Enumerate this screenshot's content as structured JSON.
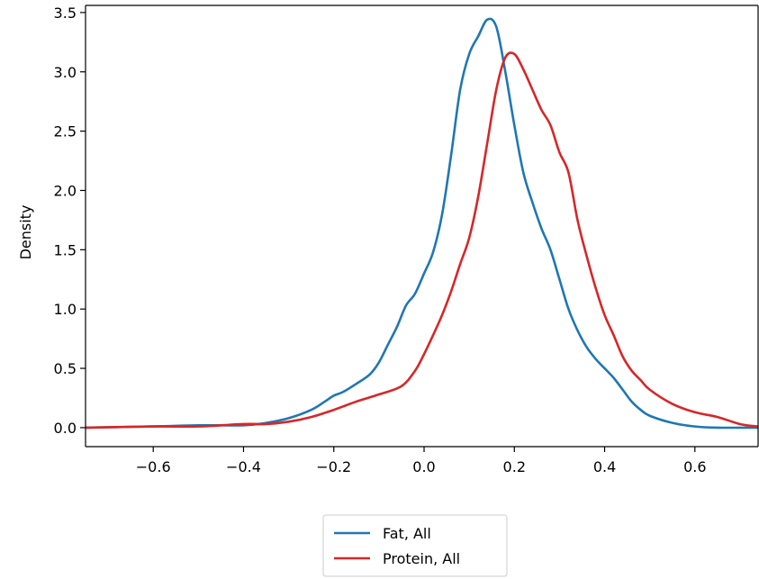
{
  "chart_data": {
    "type": "line",
    "title": "",
    "xlabel": "",
    "ylabel": "Density",
    "xlim": [
      -0.75,
      0.74
    ],
    "ylim": [
      -0.16,
      3.56
    ],
    "xticks": [
      -0.6,
      -0.4,
      -0.2,
      0.0,
      0.2,
      0.4,
      0.6
    ],
    "xtick_labels": [
      "−0.6",
      "−0.4",
      "−0.2",
      "0.0",
      "0.2",
      "0.4",
      "0.6"
    ],
    "yticks": [
      0.0,
      0.5,
      1.0,
      1.5,
      2.0,
      2.5,
      3.0,
      3.5
    ],
    "ytick_labels": [
      "0.0",
      "0.5",
      "1.0",
      "1.5",
      "2.0",
      "2.5",
      "3.0",
      "3.5"
    ],
    "grid": false,
    "legend_position": "bottom-center",
    "series": [
      {
        "name": "Fat, All",
        "color": "#1f77b4",
        "x": [
          -0.75,
          -0.6,
          -0.5,
          -0.4,
          -0.35,
          -0.3,
          -0.25,
          -0.22,
          -0.2,
          -0.18,
          -0.15,
          -0.12,
          -0.1,
          -0.08,
          -0.06,
          -0.04,
          -0.02,
          0.0,
          0.02,
          0.04,
          0.06,
          0.08,
          0.1,
          0.12,
          0.14,
          0.16,
          0.18,
          0.2,
          0.22,
          0.24,
          0.26,
          0.28,
          0.3,
          0.32,
          0.34,
          0.36,
          0.38,
          0.4,
          0.42,
          0.44,
          0.46,
          0.48,
          0.5,
          0.55,
          0.6,
          0.65,
          0.74
        ],
        "y": [
          0.0,
          0.01,
          0.02,
          0.02,
          0.04,
          0.08,
          0.15,
          0.22,
          0.27,
          0.3,
          0.37,
          0.45,
          0.55,
          0.7,
          0.85,
          1.03,
          1.13,
          1.3,
          1.48,
          1.8,
          2.3,
          2.85,
          3.15,
          3.3,
          3.44,
          3.38,
          3.0,
          2.55,
          2.15,
          1.9,
          1.68,
          1.5,
          1.25,
          1.0,
          0.82,
          0.68,
          0.58,
          0.5,
          0.42,
          0.32,
          0.22,
          0.15,
          0.1,
          0.04,
          0.01,
          0.0,
          0.0
        ]
      },
      {
        "name": "Protein, All",
        "color": "#d62728",
        "x": [
          -0.75,
          -0.6,
          -0.5,
          -0.4,
          -0.35,
          -0.3,
          -0.25,
          -0.2,
          -0.15,
          -0.1,
          -0.05,
          -0.02,
          0.0,
          0.02,
          0.04,
          0.06,
          0.08,
          0.1,
          0.12,
          0.14,
          0.16,
          0.18,
          0.2,
          0.22,
          0.24,
          0.26,
          0.28,
          0.3,
          0.32,
          0.34,
          0.36,
          0.38,
          0.4,
          0.42,
          0.44,
          0.46,
          0.48,
          0.5,
          0.55,
          0.6,
          0.65,
          0.7,
          0.74
        ],
        "y": [
          0.0,
          0.01,
          0.01,
          0.03,
          0.03,
          0.05,
          0.09,
          0.15,
          0.22,
          0.28,
          0.35,
          0.48,
          0.62,
          0.78,
          0.95,
          1.15,
          1.38,
          1.6,
          1.95,
          2.4,
          2.85,
          3.12,
          3.15,
          3.02,
          2.85,
          2.68,
          2.55,
          2.32,
          2.15,
          1.75,
          1.45,
          1.18,
          0.95,
          0.78,
          0.6,
          0.48,
          0.4,
          0.32,
          0.2,
          0.13,
          0.09,
          0.03,
          0.01
        ]
      }
    ]
  }
}
